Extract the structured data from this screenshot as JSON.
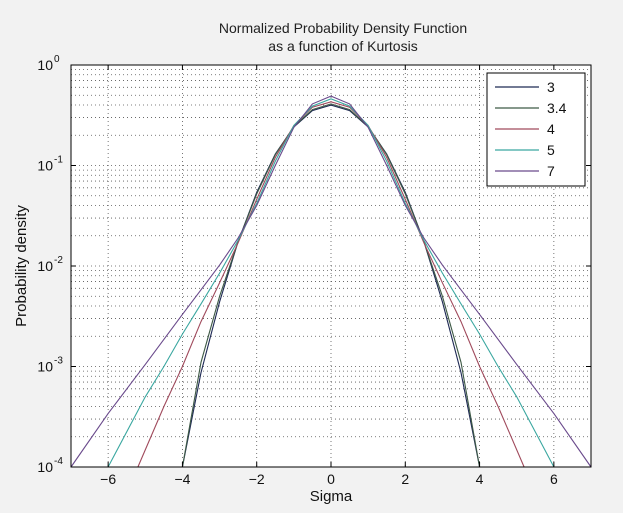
{
  "chart_data": {
    "type": "line",
    "title": "Normalized Probability Density Function",
    "subtitle": "as a function of Kurtosis",
    "xlabel": "Sigma",
    "ylabel": "Probability density",
    "xlim": [
      -7,
      7
    ],
    "ylim": [
      0.0001,
      1
    ],
    "yscale": "log",
    "grid": true,
    "legend_position": "top-right",
    "x_ticks": [
      -6,
      -4,
      -2,
      0,
      2,
      4,
      6
    ],
    "x_tick_labels": [
      "−6",
      "−4",
      "−2",
      "0",
      "2",
      "4",
      "6"
    ],
    "y_ticks": [
      {
        "base": "10",
        "exp": "-4",
        "value": 0.0001
      },
      {
        "base": "10",
        "exp": "-3",
        "value": 0.001
      },
      {
        "base": "10",
        "exp": "-2",
        "value": 0.01
      },
      {
        "base": "10",
        "exp": "-1",
        "value": 0.1
      },
      {
        "base": "10",
        "exp": "0",
        "value": 1
      }
    ],
    "series": [
      {
        "name": "3",
        "color": "#1f2a55",
        "x": [
          -4.0,
          -3.5,
          -3.0,
          -2.5,
          -2.0,
          -1.5,
          -1.0,
          -0.5,
          0,
          0.5,
          1.0,
          1.5,
          2.0,
          2.5,
          3.0,
          3.5,
          4.0
        ],
        "y": [
          0.0001,
          0.00087,
          0.0044,
          0.0175,
          0.054,
          0.13,
          0.242,
          0.352,
          0.399,
          0.352,
          0.242,
          0.13,
          0.054,
          0.0175,
          0.0044,
          0.00087,
          0.0001
        ]
      },
      {
        "name": "3.4",
        "color": "#3e5a46",
        "x": [
          -4.0,
          -3.5,
          -3.0,
          -2.5,
          -2.0,
          -1.5,
          -1.0,
          -0.5,
          0,
          0.5,
          1.0,
          1.5,
          2.0,
          2.5,
          3.0,
          3.5,
          4.0
        ],
        "y": [
          0.0001,
          0.0011,
          0.005,
          0.0175,
          0.052,
          0.128,
          0.245,
          0.36,
          0.41,
          0.36,
          0.245,
          0.128,
          0.052,
          0.0175,
          0.005,
          0.0011,
          0.0001
        ]
      },
      {
        "name": "4",
        "color": "#a04a5c",
        "x": [
          -5.2,
          -4.5,
          -4.0,
          -3.5,
          -3.0,
          -2.5,
          -2.0,
          -1.5,
          -1.0,
          -0.5,
          0,
          0.5,
          1.0,
          1.5,
          2.0,
          2.5,
          3.0,
          3.5,
          4.0,
          4.5,
          5.2
        ],
        "y": [
          0.0001,
          0.0004,
          0.001,
          0.0028,
          0.0068,
          0.017,
          0.046,
          0.12,
          0.25,
          0.38,
          0.43,
          0.38,
          0.25,
          0.12,
          0.046,
          0.017,
          0.0068,
          0.0028,
          0.001,
          0.0004,
          0.0001
        ]
      },
      {
        "name": "5",
        "color": "#3aa7a0",
        "x": [
          -6.0,
          -5.0,
          -4.5,
          -4.0,
          -3.5,
          -3.0,
          -2.5,
          -2.0,
          -1.5,
          -1.0,
          -0.5,
          0,
          0.5,
          1.0,
          1.5,
          2.0,
          2.5,
          3.0,
          3.5,
          4.0,
          4.5,
          5.0,
          6.0
        ],
        "y": [
          0.0001,
          0.0005,
          0.001,
          0.0021,
          0.0042,
          0.0085,
          0.018,
          0.042,
          0.11,
          0.25,
          0.39,
          0.46,
          0.39,
          0.25,
          0.11,
          0.042,
          0.018,
          0.0085,
          0.0042,
          0.0021,
          0.001,
          0.0005,
          0.0001
        ]
      },
      {
        "name": "7",
        "color": "#6a4a8c",
        "x": [
          -7.0,
          -6.0,
          -5.0,
          -4.0,
          -3.5,
          -3.0,
          -2.5,
          -2.0,
          -1.5,
          -1.0,
          -0.5,
          0,
          0.5,
          1.0,
          1.5,
          2.0,
          2.5,
          3.0,
          3.5,
          4.0,
          5.0,
          6.0,
          7.0
        ],
        "y": [
          0.0001,
          0.00034,
          0.00105,
          0.0033,
          0.0058,
          0.0102,
          0.019,
          0.04,
          0.1,
          0.24,
          0.41,
          0.49,
          0.41,
          0.24,
          0.1,
          0.04,
          0.019,
          0.0102,
          0.0058,
          0.0033,
          0.00105,
          0.00034,
          0.0001
        ]
      }
    ]
  }
}
